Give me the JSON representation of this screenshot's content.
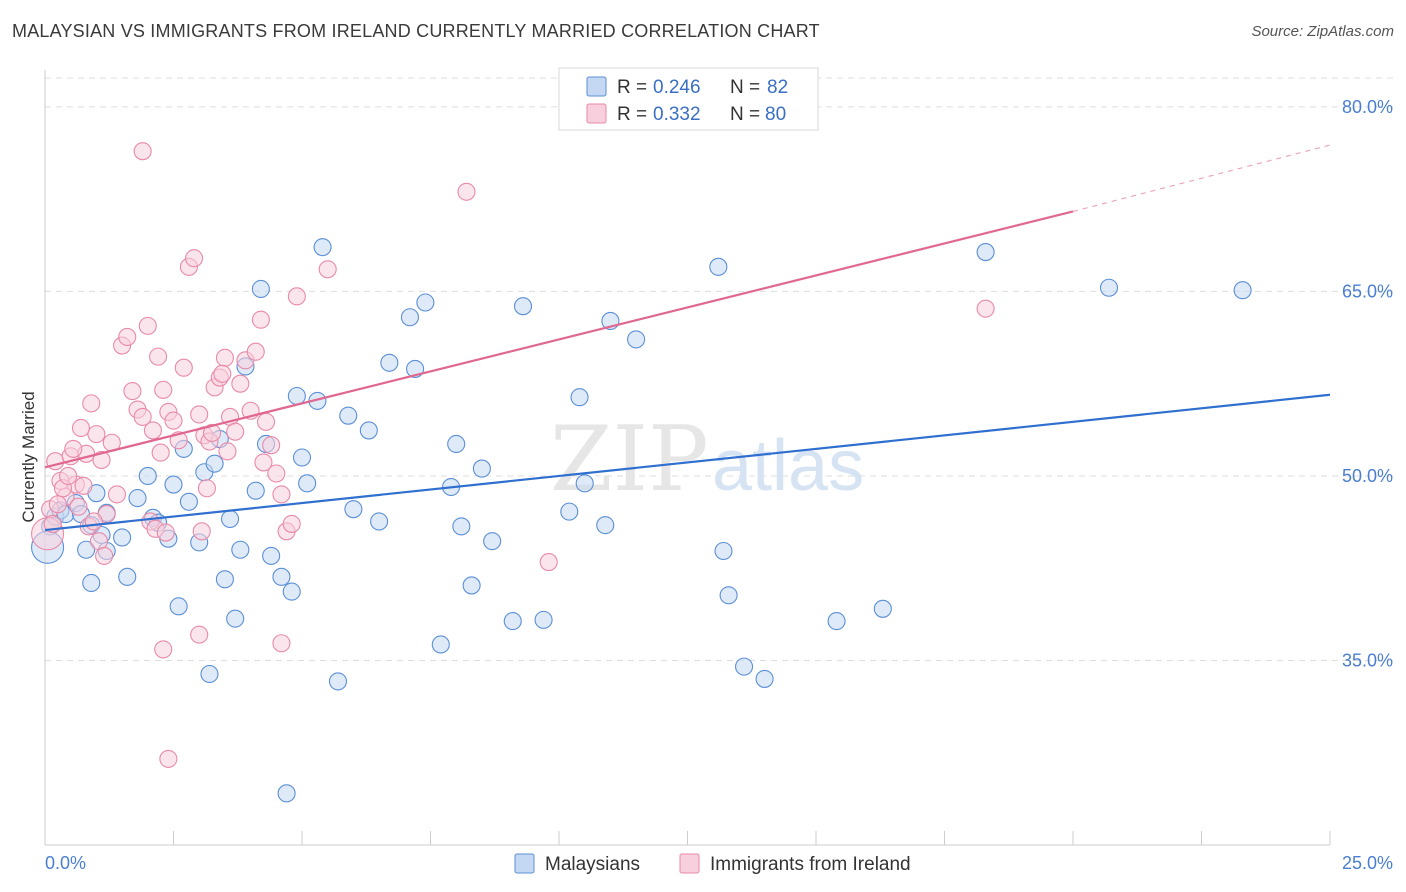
{
  "header": {
    "title": "MALAYSIAN VS IMMIGRANTS FROM IRELAND CURRENTLY MARRIED CORRELATION CHART",
    "source": "Source: ZipAtlas.com"
  },
  "colors": {
    "blue": "#5b8fd6",
    "blue_fill": "#c5d8f3",
    "blue_line": "#2f6fcf",
    "pink": "#e88aa8",
    "pink_fill": "#f8cfdc",
    "pink_line": "#e06890",
    "grid": "#dddddd",
    "axis_label": "#4a7fd0"
  },
  "watermark": {
    "zip": "ZIP",
    "atlas": "atlas"
  },
  "legend": {
    "rows": [
      {
        "r_label": "R =",
        "r_value": "0.246",
        "n_label": "N =",
        "n_value": "82"
      },
      {
        "r_label": "R =",
        "r_value": "0.332",
        "n_label": "N =",
        "n_value": "80"
      }
    ]
  },
  "bottom_legend": {
    "items": [
      {
        "label": "Malaysians"
      },
      {
        "label": "Immigrants from Ireland"
      }
    ]
  },
  "chart_data": {
    "type": "scatter",
    "title": "MALAYSIAN VS IMMIGRANTS FROM IRELAND CURRENTLY MARRIED CORRELATION CHART",
    "xlabel": "",
    "ylabel": "Currently Married",
    "xlim": [
      0,
      25
    ],
    "ylim": [
      20,
      83
    ],
    "x_tick_labels": [
      "0.0%",
      "25.0%"
    ],
    "y_ticks": [
      35,
      50,
      65,
      80
    ],
    "y_tick_labels": [
      "35.0%",
      "50.0%",
      "65.0%",
      "80.0%"
    ],
    "grid": true,
    "series": [
      {
        "name": "Malaysians",
        "r": 0.246,
        "n": 82,
        "trend": {
          "x": [
            0,
            25
          ],
          "y": [
            45.6,
            56.6
          ]
        },
        "points": [
          [
            0.1,
            45.9
          ],
          [
            0.2,
            46.7
          ],
          [
            0.3,
            47.2
          ],
          [
            0.4,
            46.9
          ],
          [
            0.6,
            47.8
          ],
          [
            0.7,
            46.9
          ],
          [
            0.9,
            46.0
          ],
          [
            1.0,
            48.6
          ],
          [
            0.8,
            44.0
          ],
          [
            1.2,
            47.0
          ],
          [
            1.5,
            45.0
          ],
          [
            1.6,
            41.8
          ],
          [
            1.1,
            45.2
          ],
          [
            1.2,
            43.9
          ],
          [
            0.9,
            41.3
          ],
          [
            2.1,
            46.6
          ],
          [
            2.2,
            46.2
          ],
          [
            2.4,
            44.9
          ],
          [
            2.5,
            49.3
          ],
          [
            2.6,
            39.4
          ],
          [
            2.7,
            52.2
          ],
          [
            2.8,
            47.9
          ],
          [
            3.0,
            44.6
          ],
          [
            3.1,
            50.3
          ],
          [
            3.3,
            51.0
          ],
          [
            3.5,
            41.6
          ],
          [
            3.6,
            46.5
          ],
          [
            3.7,
            38.4
          ],
          [
            3.8,
            44.0
          ],
          [
            3.9,
            58.9
          ],
          [
            4.1,
            48.8
          ],
          [
            4.3,
            52.6
          ],
          [
            4.4,
            43.5
          ],
          [
            4.6,
            41.8
          ],
          [
            4.8,
            40.6
          ],
          [
            4.9,
            56.5
          ],
          [
            5.0,
            51.5
          ],
          [
            5.1,
            49.4
          ],
          [
            5.3,
            56.1
          ],
          [
            4.2,
            65.2
          ],
          [
            5.4,
            68.6
          ],
          [
            3.2,
            33.9
          ],
          [
            5.7,
            33.3
          ],
          [
            4.7,
            24.2
          ],
          [
            5.9,
            54.9
          ],
          [
            6.0,
            47.3
          ],
          [
            6.3,
            53.7
          ],
          [
            6.5,
            46.3
          ],
          [
            6.7,
            59.2
          ],
          [
            7.1,
            62.9
          ],
          [
            7.2,
            58.7
          ],
          [
            7.4,
            64.1
          ],
          [
            7.7,
            36.3
          ],
          [
            7.9,
            49.1
          ],
          [
            8.0,
            52.6
          ],
          [
            8.1,
            45.9
          ],
          [
            8.3,
            41.1
          ],
          [
            8.5,
            50.6
          ],
          [
            8.7,
            44.7
          ],
          [
            9.1,
            38.2
          ],
          [
            9.3,
            63.8
          ],
          [
            9.7,
            38.3
          ],
          [
            10.2,
            47.1
          ],
          [
            10.4,
            56.4
          ],
          [
            10.5,
            49.4
          ],
          [
            10.9,
            46.0
          ],
          [
            11.0,
            62.6
          ],
          [
            11.5,
            61.1
          ],
          [
            13.1,
            67.0
          ],
          [
            13.2,
            43.9
          ],
          [
            13.3,
            40.3
          ],
          [
            13.6,
            34.5
          ],
          [
            14.0,
            33.5
          ],
          [
            15.4,
            38.2
          ],
          [
            16.3,
            39.2
          ],
          [
            18.3,
            68.2
          ],
          [
            20.7,
            65.3
          ],
          [
            23.3,
            65.1
          ],
          [
            0.05,
            44.2
          ],
          [
            1.8,
            48.2
          ],
          [
            2.0,
            50.0
          ],
          [
            3.4,
            53.0
          ]
        ]
      },
      {
        "name": "Immigrants from Ireland",
        "r": 0.332,
        "n": 80,
        "trend": {
          "x": [
            0,
            20
          ],
          "y": [
            50.7,
            71.5
          ]
        },
        "trend_dashed": {
          "x": [
            20,
            25
          ],
          "y": [
            71.5,
            76.9
          ]
        },
        "points": [
          [
            0.1,
            47.3
          ],
          [
            0.2,
            51.2
          ],
          [
            0.3,
            49.6
          ],
          [
            0.4,
            48.3
          ],
          [
            0.5,
            51.6
          ],
          [
            0.6,
            49.3
          ],
          [
            0.7,
            53.9
          ],
          [
            0.8,
            51.8
          ],
          [
            0.9,
            55.9
          ],
          [
            1.0,
            53.4
          ],
          [
            1.1,
            51.3
          ],
          [
            1.2,
            46.9
          ],
          [
            1.3,
            52.7
          ],
          [
            1.4,
            48.5
          ],
          [
            1.5,
            60.6
          ],
          [
            1.6,
            61.3
          ],
          [
            1.7,
            56.9
          ],
          [
            1.8,
            55.4
          ],
          [
            1.9,
            54.8
          ],
          [
            2.0,
            62.2
          ],
          [
            2.1,
            53.7
          ],
          [
            2.2,
            59.7
          ],
          [
            2.3,
            57.0
          ],
          [
            2.4,
            55.2
          ],
          [
            2.5,
            54.5
          ],
          [
            2.6,
            52.9
          ],
          [
            2.7,
            58.8
          ],
          [
            2.8,
            67.0
          ],
          [
            2.9,
            67.7
          ],
          [
            3.0,
            55.0
          ],
          [
            3.1,
            53.3
          ],
          [
            3.2,
            52.8
          ],
          [
            3.3,
            57.2
          ],
          [
            3.4,
            58.0
          ],
          [
            3.5,
            59.6
          ],
          [
            3.6,
            54.8
          ],
          [
            3.7,
            53.6
          ],
          [
            3.8,
            57.5
          ],
          [
            3.9,
            59.4
          ],
          [
            4.0,
            55.3
          ],
          [
            4.1,
            60.1
          ],
          [
            4.2,
            62.7
          ],
          [
            4.3,
            54.4
          ],
          [
            4.4,
            52.5
          ],
          [
            4.5,
            50.2
          ],
          [
            4.6,
            48.5
          ],
          [
            4.7,
            45.5
          ],
          [
            4.8,
            46.1
          ],
          [
            4.9,
            64.6
          ],
          [
            5.5,
            66.8
          ],
          [
            1.9,
            76.4
          ],
          [
            8.2,
            73.1
          ],
          [
            9.8,
            43.0
          ],
          [
            18.3,
            63.6
          ],
          [
            2.3,
            35.9
          ],
          [
            3.0,
            37.1
          ],
          [
            4.6,
            36.4
          ],
          [
            2.4,
            27.0
          ],
          [
            0.05,
            45.3
          ],
          [
            0.15,
            46.1
          ],
          [
            0.25,
            47.7
          ],
          [
            0.35,
            49.0
          ],
          [
            0.45,
            50.0
          ],
          [
            0.55,
            52.2
          ],
          [
            0.65,
            47.5
          ],
          [
            0.75,
            49.2
          ],
          [
            0.85,
            45.9
          ],
          [
            0.95,
            46.3
          ],
          [
            1.05,
            44.7
          ],
          [
            1.15,
            43.5
          ],
          [
            2.05,
            46.3
          ],
          [
            2.15,
            45.7
          ],
          [
            2.25,
            51.9
          ],
          [
            2.35,
            45.4
          ],
          [
            3.05,
            45.5
          ],
          [
            3.15,
            49.0
          ],
          [
            3.25,
            53.5
          ],
          [
            3.45,
            58.3
          ],
          [
            3.55,
            52.0
          ],
          [
            4.25,
            51.1
          ]
        ]
      }
    ]
  }
}
